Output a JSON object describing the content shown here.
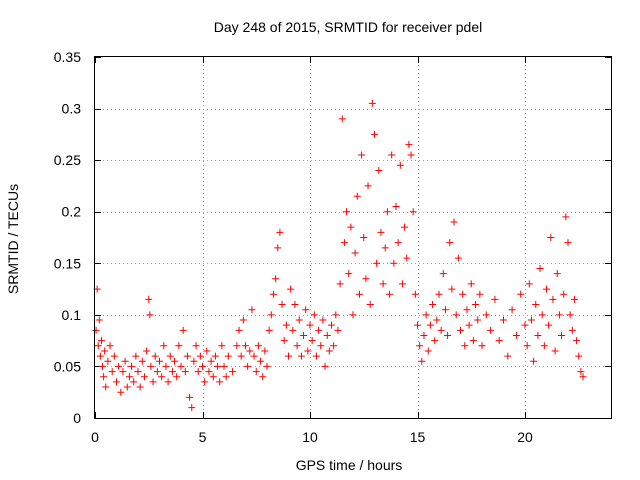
{
  "chart_data": {
    "type": "scatter",
    "title": "Day 248 of 2015, SRMTID for receiver pdel",
    "xlabel": "GPS time / hours",
    "ylabel": "SRMTID / TECUs",
    "xlim": [
      0,
      24
    ],
    "ylim": [
      0,
      0.35
    ],
    "xticks": [
      0,
      5,
      10,
      15,
      20
    ],
    "xtick_labels": [
      "0",
      "5",
      "10",
      "15",
      "20"
    ],
    "yticks": [
      0,
      0.05,
      0.1,
      0.15,
      0.2,
      0.25,
      0.3,
      0.35
    ],
    "ytick_labels": [
      "0",
      "0.05",
      "0.1",
      "0.15",
      "0.2",
      "0.25",
      "0.3",
      "0.35"
    ],
    "grid": true,
    "marker": "+",
    "color": "#ff0000",
    "series": [
      {
        "name": "SRMTID",
        "points": [
          [
            0.05,
            0.085
          ],
          [
            0.1,
            0.125
          ],
          [
            0.15,
            0.07
          ],
          [
            0.2,
            0.095
          ],
          [
            0.25,
            0.06
          ],
          [
            0.3,
            0.075
          ],
          [
            0.35,
            0.05
          ],
          [
            0.4,
            0.04
          ],
          [
            0.45,
            0.065
          ],
          [
            0.5,
            0.03
          ],
          [
            0.6,
            0.055
          ],
          [
            0.7,
            0.07
          ],
          [
            0.8,
            0.045
          ],
          [
            0.9,
            0.06
          ],
          [
            1.0,
            0.035
          ],
          [
            1.1,
            0.05
          ],
          [
            1.2,
            0.025
          ],
          [
            1.3,
            0.045
          ],
          [
            1.4,
            0.055
          ],
          [
            1.5,
            0.03
          ],
          [
            1.6,
            0.04
          ],
          [
            1.7,
            0.05
          ],
          [
            1.8,
            0.035
          ],
          [
            1.9,
            0.06
          ],
          [
            2.0,
            0.045
          ],
          [
            2.1,
            0.03
          ],
          [
            2.2,
            0.055
          ],
          [
            2.3,
            0.04
          ],
          [
            2.4,
            0.065
          ],
          [
            2.5,
            0.115
          ],
          [
            2.55,
            0.1
          ],
          [
            2.6,
            0.05
          ],
          [
            2.7,
            0.035
          ],
          [
            2.8,
            0.06
          ],
          [
            2.9,
            0.045
          ],
          [
            3.0,
            0.055
          ],
          [
            3.1,
            0.04
          ],
          [
            3.2,
            0.07
          ],
          [
            3.3,
            0.05
          ],
          [
            3.4,
            0.035
          ],
          [
            3.5,
            0.06
          ],
          [
            3.6,
            0.045
          ],
          [
            3.7,
            0.055
          ],
          [
            3.8,
            0.04
          ],
          [
            3.9,
            0.07
          ],
          [
            4.0,
            0.05
          ],
          [
            4.1,
            0.085
          ],
          [
            4.2,
            0.045
          ],
          [
            4.3,
            0.06
          ],
          [
            4.4,
            0.02
          ],
          [
            4.5,
            0.01
          ],
          [
            4.6,
            0.055
          ],
          [
            4.7,
            0.07
          ],
          [
            4.8,
            0.045
          ],
          [
            4.9,
            0.06
          ],
          [
            5.0,
            0.05
          ],
          [
            5.1,
            0.035
          ],
          [
            5.2,
            0.065
          ],
          [
            5.3,
            0.045
          ],
          [
            5.4,
            0.055
          ],
          [
            5.5,
            0.04
          ],
          [
            5.6,
            0.06
          ],
          [
            5.7,
            0.05
          ],
          [
            5.8,
            0.035
          ],
          [
            5.9,
            0.07
          ],
          [
            6.0,
            0.05
          ],
          [
            6.1,
            0.04
          ],
          [
            6.2,
            0.06
          ],
          [
            6.4,
            0.045
          ],
          [
            6.6,
            0.07
          ],
          [
            6.7,
            0.085
          ],
          [
            6.8,
            0.06
          ],
          [
            6.9,
            0.095
          ],
          [
            7.0,
            0.07
          ],
          [
            7.1,
            0.05
          ],
          [
            7.2,
            0.065
          ],
          [
            7.3,
            0.105
          ],
          [
            7.4,
            0.06
          ],
          [
            7.5,
            0.045
          ],
          [
            7.6,
            0.07
          ],
          [
            7.7,
            0.055
          ],
          [
            7.8,
            0.04
          ],
          [
            7.9,
            0.065
          ],
          [
            8.0,
            0.05
          ],
          [
            8.1,
            0.085
          ],
          [
            8.2,
            0.1
          ],
          [
            8.3,
            0.12
          ],
          [
            8.4,
            0.135
          ],
          [
            8.5,
            0.165
          ],
          [
            8.6,
            0.18
          ],
          [
            8.7,
            0.11
          ],
          [
            8.8,
            0.075
          ],
          [
            8.9,
            0.09
          ],
          [
            9.0,
            0.06
          ],
          [
            9.1,
            0.125
          ],
          [
            9.2,
            0.085
          ],
          [
            9.3,
            0.11
          ],
          [
            9.4,
            0.07
          ],
          [
            9.5,
            0.095
          ],
          [
            9.6,
            0.06
          ],
          [
            9.7,
            0.08
          ],
          [
            9.8,
            0.105
          ],
          [
            9.9,
            0.065
          ],
          [
            10.0,
            0.09
          ],
          [
            10.1,
            0.075
          ],
          [
            10.2,
            0.1
          ],
          [
            10.3,
            0.06
          ],
          [
            10.4,
            0.085
          ],
          [
            10.5,
            0.07
          ],
          [
            10.6,
            0.095
          ],
          [
            10.7,
            0.05
          ],
          [
            10.8,
            0.08
          ],
          [
            10.9,
            0.065
          ],
          [
            11.0,
            0.09
          ],
          [
            11.1,
            0.07
          ],
          [
            11.2,
            0.1
          ],
          [
            11.3,
            0.085
          ],
          [
            11.4,
            0.13
          ],
          [
            11.5,
            0.29
          ],
          [
            11.6,
            0.17
          ],
          [
            11.7,
            0.2
          ],
          [
            11.8,
            0.14
          ],
          [
            11.9,
            0.185
          ],
          [
            12.0,
            0.1
          ],
          [
            12.1,
            0.16
          ],
          [
            12.2,
            0.215
          ],
          [
            12.3,
            0.12
          ],
          [
            12.4,
            0.255
          ],
          [
            12.5,
            0.175
          ],
          [
            12.6,
            0.135
          ],
          [
            12.7,
            0.225
          ],
          [
            12.8,
            0.11
          ],
          [
            12.9,
            0.305
          ],
          [
            13.0,
            0.275
          ],
          [
            13.1,
            0.15
          ],
          [
            13.2,
            0.24
          ],
          [
            13.3,
            0.18
          ],
          [
            13.4,
            0.13
          ],
          [
            13.5,
            0.165
          ],
          [
            13.6,
            0.2
          ],
          [
            13.7,
            0.12
          ],
          [
            13.8,
            0.255
          ],
          [
            13.9,
            0.15
          ],
          [
            14.0,
            0.205
          ],
          [
            14.1,
            0.17
          ],
          [
            14.2,
            0.245
          ],
          [
            14.3,
            0.13
          ],
          [
            14.4,
            0.185
          ],
          [
            14.5,
            0.155
          ],
          [
            14.6,
            0.265
          ],
          [
            14.7,
            0.255
          ],
          [
            14.8,
            0.2
          ],
          [
            14.9,
            0.12
          ],
          [
            15.0,
            0.09
          ],
          [
            15.1,
            0.07
          ],
          [
            15.2,
            0.055
          ],
          [
            15.3,
            0.08
          ],
          [
            15.4,
            0.1
          ],
          [
            15.5,
            0.065
          ],
          [
            15.6,
            0.09
          ],
          [
            15.7,
            0.11
          ],
          [
            15.8,
            0.075
          ],
          [
            15.9,
            0.095
          ],
          [
            16.0,
            0.12
          ],
          [
            16.1,
            0.085
          ],
          [
            16.2,
            0.14
          ],
          [
            16.3,
            0.105
          ],
          [
            16.4,
            0.08
          ],
          [
            16.5,
            0.17
          ],
          [
            16.6,
            0.125
          ],
          [
            16.7,
            0.19
          ],
          [
            16.8,
            0.1
          ],
          [
            16.9,
            0.155
          ],
          [
            17.0,
            0.085
          ],
          [
            17.1,
            0.12
          ],
          [
            17.2,
            0.07
          ],
          [
            17.3,
            0.105
          ],
          [
            17.4,
            0.09
          ],
          [
            17.5,
            0.13
          ],
          [
            17.6,
            0.075
          ],
          [
            17.7,
            0.11
          ],
          [
            17.8,
            0.095
          ],
          [
            17.9,
            0.12
          ],
          [
            18.0,
            0.07
          ],
          [
            18.2,
            0.1
          ],
          [
            18.4,
            0.085
          ],
          [
            18.6,
            0.115
          ],
          [
            18.8,
            0.075
          ],
          [
            19.0,
            0.095
          ],
          [
            19.2,
            0.06
          ],
          [
            19.4,
            0.105
          ],
          [
            19.6,
            0.08
          ],
          [
            19.8,
            0.12
          ],
          [
            20.0,
            0.09
          ],
          [
            20.1,
            0.07
          ],
          [
            20.2,
            0.13
          ],
          [
            20.3,
            0.095
          ],
          [
            20.4,
            0.055
          ],
          [
            20.5,
            0.11
          ],
          [
            20.6,
            0.08
          ],
          [
            20.7,
            0.145
          ],
          [
            20.8,
            0.1
          ],
          [
            20.9,
            0.07
          ],
          [
            21.0,
            0.125
          ],
          [
            21.1,
            0.09
          ],
          [
            21.2,
            0.175
          ],
          [
            21.3,
            0.115
          ],
          [
            21.4,
            0.065
          ],
          [
            21.5,
            0.14
          ],
          [
            21.6,
            0.1
          ],
          [
            21.7,
            0.08
          ],
          [
            21.8,
            0.12
          ],
          [
            21.9,
            0.195
          ],
          [
            22.0,
            0.17
          ],
          [
            22.1,
            0.1
          ],
          [
            22.2,
            0.085
          ],
          [
            22.3,
            0.115
          ],
          [
            22.4,
            0.075
          ],
          [
            22.5,
            0.06
          ],
          [
            22.6,
            0.045
          ],
          [
            22.7,
            0.04
          ]
        ]
      }
    ]
  }
}
